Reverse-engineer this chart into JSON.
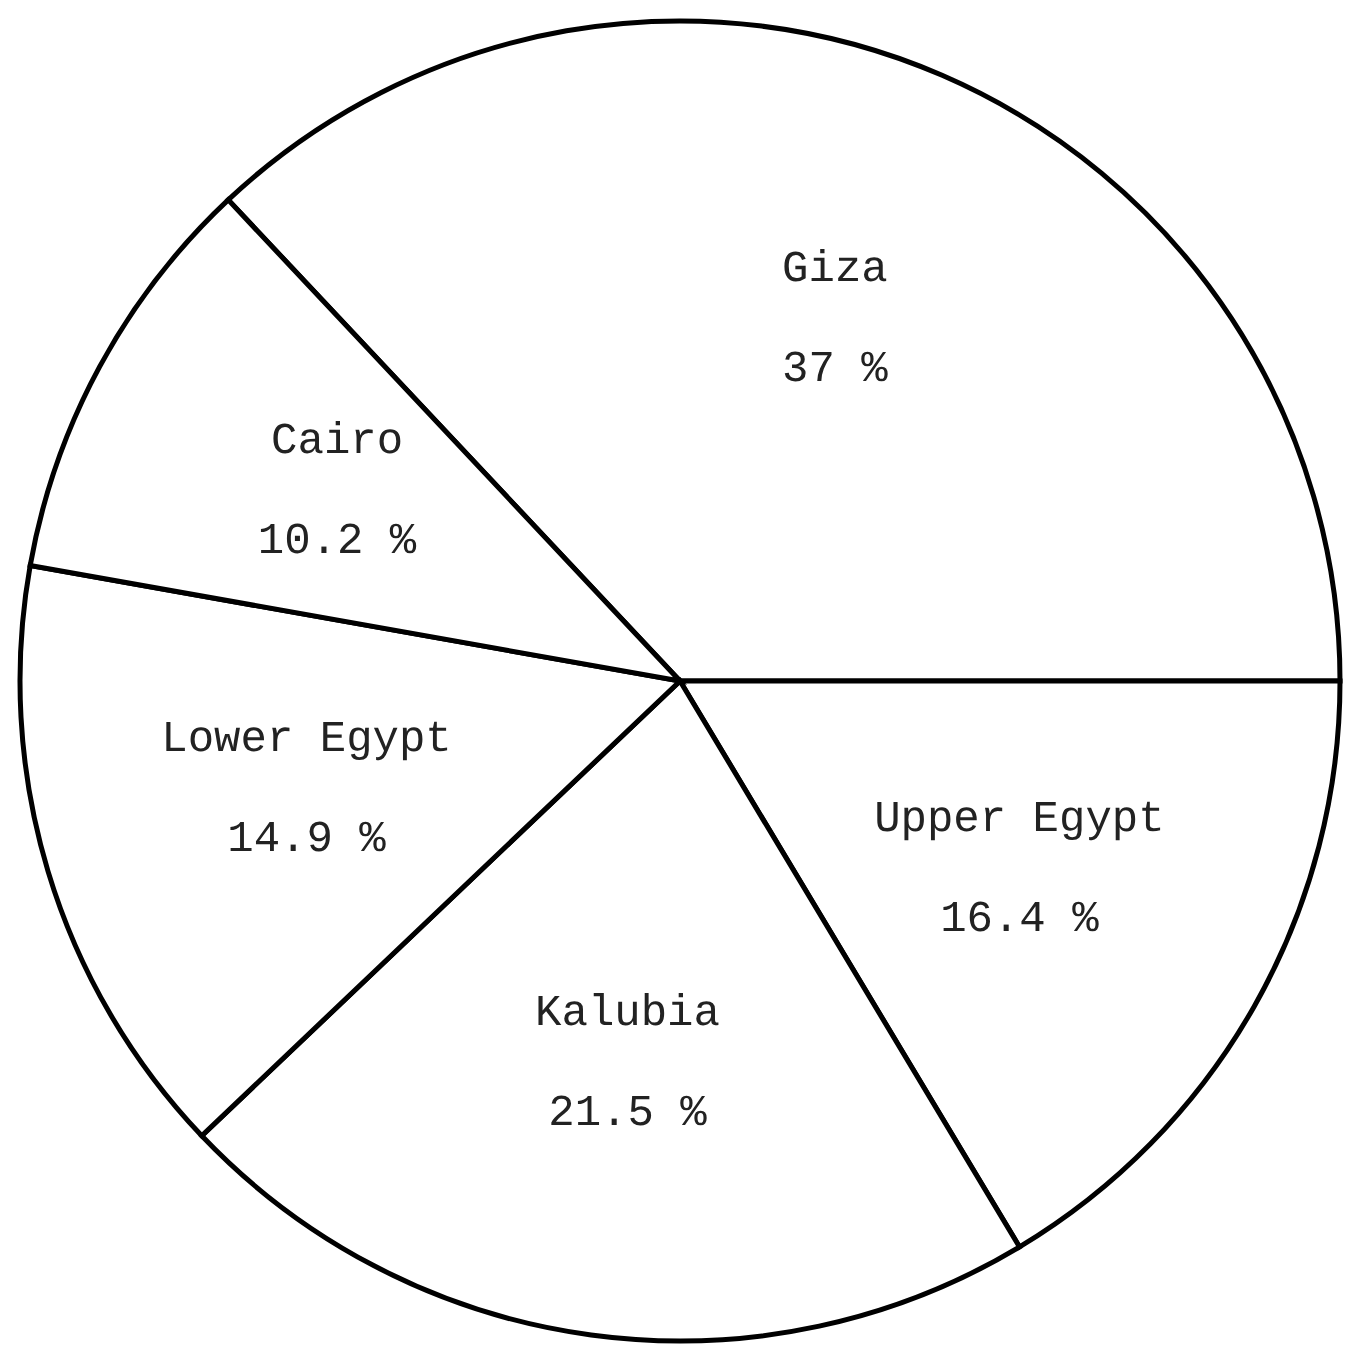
{
  "chart_data": {
    "type": "pie",
    "categories": [
      "Giza",
      "Upper Egypt",
      "Kalubia",
      "Lower Egypt",
      "Cairo"
    ],
    "values": [
      37,
      16.4,
      21.5,
      14.9,
      10.2
    ],
    "value_labels": [
      "37 %",
      "16.4 %",
      "21.5 %",
      "14.9 %",
      "10.2 %"
    ],
    "colors": [
      "#ffffff",
      "#ffffff",
      "#ffffff",
      "#ffffff",
      "#ffffff"
    ]
  }
}
